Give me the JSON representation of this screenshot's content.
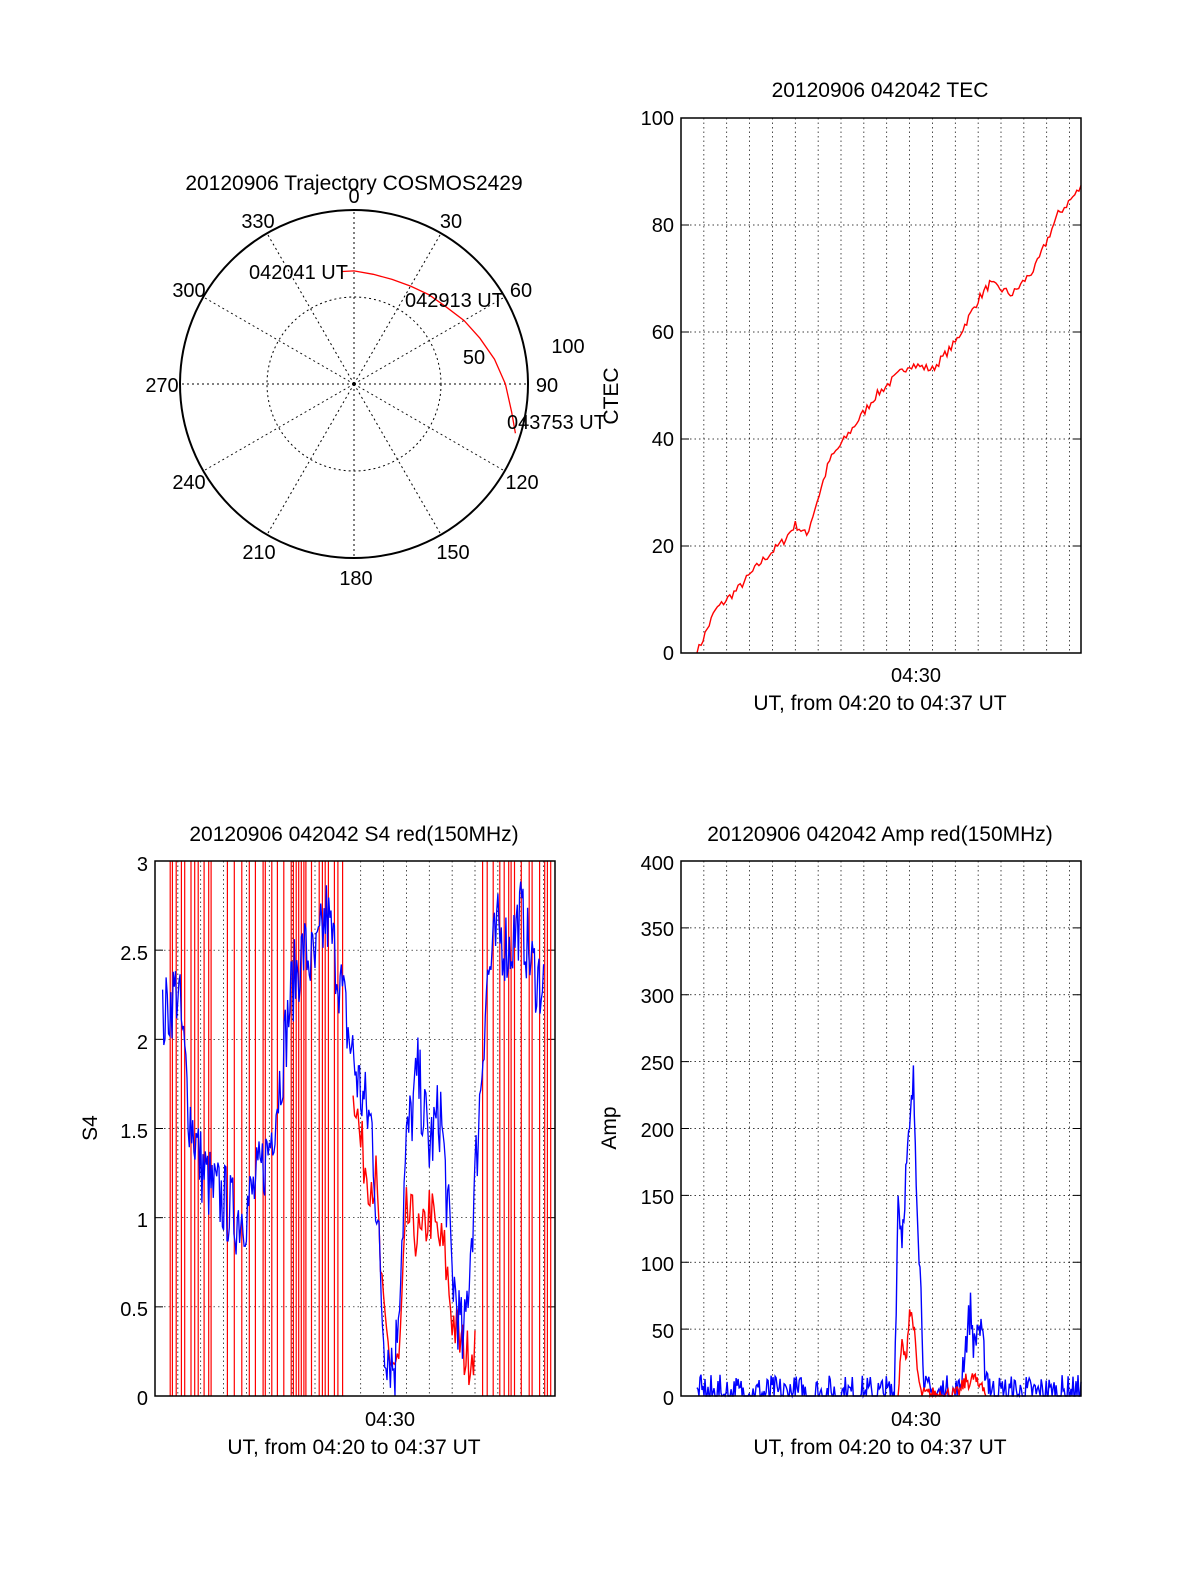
{
  "colors": {
    "red": "#ff0000",
    "blue": "#0000ff",
    "axis": "#000000",
    "grid": "#000000"
  },
  "chart_data": [
    {
      "id": "trajectory",
      "type": "polar",
      "title": "20120906 Trajectory COSMOS2429",
      "angle_labels": [
        "0",
        "30",
        "60",
        "90",
        "120",
        "150",
        "180",
        "210",
        "240",
        "270",
        "300",
        "330"
      ],
      "radial_labels": [
        "50",
        "100"
      ],
      "radial_max": 100,
      "grid": true,
      "trajectory": {
        "azimuth_deg": [
          354,
          0,
          10,
          20,
          30,
          40,
          50,
          60,
          70,
          80,
          90,
          100,
          107
        ],
        "radius": [
          65,
          65,
          64,
          64,
          65,
          67,
          69,
          73,
          77,
          82,
          87,
          92,
          97
        ]
      },
      "annotations": [
        {
          "text": "042041 UT",
          "azimuth_deg": 354,
          "radius": 65
        },
        {
          "text": "042913 UT",
          "azimuth_deg": 48,
          "radius": 68
        },
        {
          "text": "043753 UT",
          "azimuth_deg": 107,
          "radius": 97
        }
      ]
    },
    {
      "id": "tec",
      "type": "line",
      "title": "20120906 042042 TEC",
      "xlabel": "UT, from 04:20 to 04:37 UT",
      "ylabel": "CTEC",
      "xtick_labels": [
        "04:30"
      ],
      "ytick_labels": [
        "0",
        "20",
        "40",
        "60",
        "80",
        "100"
      ],
      "ylim": [
        0,
        100
      ],
      "grid": true,
      "series": [
        {
          "color": "red",
          "x": [
            "04:20:42",
            "04:21:30",
            "04:22:30",
            "04:23:30",
            "04:24:30",
            "04:25:00",
            "04:25:30",
            "04:26:30",
            "04:27:30",
            "04:28:30",
            "04:29:30",
            "04:30:00",
            "04:31:00",
            "04:32:00",
            "04:32:30",
            "04:33:00",
            "04:33:30",
            "04:34:30",
            "04:35:30",
            "04:36:30",
            "04:37:30"
          ],
          "values": [
            0,
            8,
            12,
            17,
            21,
            24,
            22,
            36,
            42,
            48,
            52,
            54,
            53,
            58,
            62,
            66,
            69,
            67,
            72,
            82,
            87
          ]
        }
      ]
    },
    {
      "id": "s4",
      "type": "line",
      "title": "20120906 042042 S4 red(150MHz)",
      "xlabel": "UT, from 04:20 to 04:37 UT",
      "ylabel": "S4",
      "xtick_labels": [
        "04:30"
      ],
      "ytick_labels": [
        "0",
        "0.5",
        "1",
        "1.5",
        "2",
        "2.5",
        "3"
      ],
      "ylim": [
        0,
        3
      ],
      "grid": true,
      "series": [
        {
          "color": "blue",
          "x": [
            "04:20:20",
            "04:21:00",
            "04:21:30",
            "04:22:00",
            "04:22:30",
            "04:23:00",
            "04:23:30",
            "04:24:00",
            "04:24:30",
            "04:25:00",
            "04:25:30",
            "04:26:00",
            "04:26:30",
            "04:27:00",
            "04:27:30",
            "04:28:00",
            "04:28:30",
            "04:29:00",
            "04:29:30",
            "04:30:00",
            "04:30:30",
            "04:31:00",
            "04:31:30",
            "04:32:00",
            "04:32:30",
            "04:33:00",
            "04:33:30",
            "04:34:00",
            "04:34:30",
            "04:35:00",
            "04:35:30",
            "04:36:00",
            "04:36:30",
            "04:37:00"
          ],
          "values": [
            2.1,
            2.3,
            1.6,
            1.3,
            1.15,
            1.1,
            1.0,
            1.05,
            1.2,
            1.4,
            1.8,
            2.3,
            2.5,
            2.4,
            2.7,
            2.4,
            2.0,
            1.7,
            1.5,
            0.35,
            0.15,
            1.4,
            1.8,
            1.4,
            1.6,
            0.7,
            0.25,
            1.2,
            2.3,
            2.6,
            2.5,
            2.7,
            2.4,
            2.3
          ]
        },
        {
          "color": "red",
          "x": [
            "04:28:40",
            "04:29:00",
            "04:29:20",
            "04:29:40",
            "04:30:00",
            "04:30:20",
            "04:30:40",
            "04:31:00",
            "04:31:20",
            "04:31:40",
            "04:32:00",
            "04:32:20",
            "04:32:40",
            "04:33:00",
            "04:33:20",
            "04:33:40",
            "04:34:00"
          ],
          "values": [
            1.8,
            1.4,
            1.25,
            1.2,
            0.4,
            0.2,
            0.15,
            1.0,
            0.95,
            0.85,
            1.05,
            0.9,
            0.8,
            0.45,
            0.3,
            0.22,
            0.3
          ]
        }
      ]
    },
    {
      "id": "amp",
      "type": "line",
      "title": "20120906 042042 Amp red(150MHz)",
      "xlabel": "UT, from 04:20 to 04:37 UT",
      "ylabel": "Amp",
      "xtick_labels": [
        "04:30"
      ],
      "ytick_labels": [
        "0",
        "50",
        "100",
        "150",
        "200",
        "250",
        "300",
        "350",
        "400"
      ],
      "ylim": [
        0,
        400
      ],
      "grid": true,
      "series": [
        {
          "color": "blue",
          "x": [
            "04:20:42",
            "04:29:20",
            "04:29:30",
            "04:29:40",
            "04:29:50",
            "04:30:00",
            "04:30:10",
            "04:30:20",
            "04:30:40",
            "04:32:10",
            "04:32:20",
            "04:32:30",
            "04:32:40",
            "04:32:50",
            "04:33:00",
            "04:33:10",
            "04:33:20",
            "04:33:40",
            "04:37:30"
          ],
          "values": [
            1,
            1,
            150,
            120,
            165,
            195,
            235,
            150,
            1,
            1,
            25,
            45,
            65,
            35,
            55,
            40,
            20,
            1,
            1
          ]
        },
        {
          "color": "red",
          "x": [
            "04:29:30",
            "04:29:40",
            "04:29:50",
            "04:30:00",
            "04:30:10",
            "04:30:20",
            "04:30:30",
            "04:32:10",
            "04:32:20",
            "04:32:30",
            "04:32:40",
            "04:32:50",
            "04:33:00",
            "04:33:10",
            "04:33:20"
          ],
          "values": [
            1,
            40,
            25,
            65,
            55,
            20,
            1,
            1,
            8,
            12,
            10,
            15,
            6,
            12,
            1
          ]
        }
      ]
    }
  ]
}
